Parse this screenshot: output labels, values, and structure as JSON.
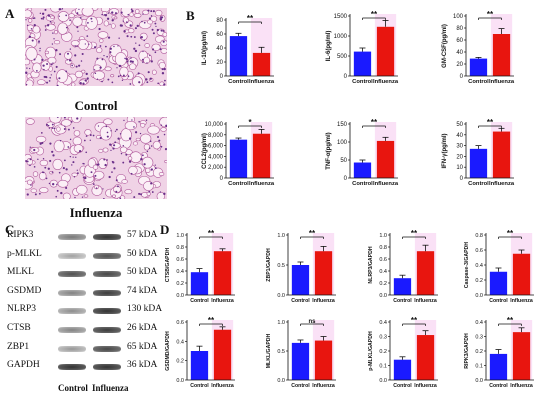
{
  "panels": {
    "a": "A",
    "b": "B",
    "c": "C",
    "d": "D"
  },
  "histology": {
    "top_caption": "Control",
    "bottom_caption": "Influenza"
  },
  "blot": {
    "lanes": [
      "Control",
      "Influenza"
    ],
    "rows": [
      {
        "protein": "RIPK3",
        "mw": "57 kDA"
      },
      {
        "protein": "p-MLKL",
        "mw": "50 kDA"
      },
      {
        "protein": "MLKL",
        "mw": "50 kDA"
      },
      {
        "protein": "GSDMD",
        "mw": "74 kDA"
      },
      {
        "protein": "NLRP3",
        "mw": "130 kDA"
      },
      {
        "protein": "CTSB",
        "mw": "26 kDA"
      },
      {
        "protein": "ZBP1",
        "mw": "65 kDA"
      },
      {
        "protein": "GAPDH",
        "mw": "36 kDA"
      }
    ]
  },
  "colors": {
    "control": "#1a1aff",
    "influenza": "#e8150f",
    "highlight": "#f6c9ee"
  },
  "chart_data": [
    {
      "type": "bar",
      "panel": "B",
      "ylabel": "IL-10(pg/ml)",
      "categories": [
        "Control",
        "Influenza"
      ],
      "values": [
        57,
        33
      ],
      "errors": [
        4,
        8
      ],
      "ylim": [
        0,
        80
      ],
      "yticks": [
        "0",
        "20",
        "40",
        "60",
        "80"
      ],
      "sig": "**"
    },
    {
      "type": "bar",
      "panel": "B",
      "ylabel": "IL-6(pg/ml)",
      "categories": [
        "Control",
        "Influenza"
      ],
      "values": [
        610,
        1230
      ],
      "errors": [
        90,
        160
      ],
      "ylim": [
        0,
        1500
      ],
      "yticks": [
        "0",
        "500",
        "1000",
        "1500"
      ],
      "sig": "**"
    },
    {
      "type": "bar",
      "panel": "B",
      "ylabel": "GM-CSF(pg/ml)",
      "categories": [
        "Control",
        "Influenza"
      ],
      "values": [
        29,
        70
      ],
      "errors": [
        2,
        9
      ],
      "ylim": [
        0,
        100
      ],
      "yticks": [
        "0",
        "20",
        "40",
        "60",
        "80",
        "100"
      ],
      "sig": "**"
    },
    {
      "type": "bar",
      "panel": "B",
      "ylabel": "CCL2(pg/ml)",
      "categories": [
        "Control",
        "Influenza"
      ],
      "values": [
        7100,
        8200
      ],
      "errors": [
        300,
        800
      ],
      "ylim": [
        0,
        10000
      ],
      "yticks": [
        "0",
        "2,000",
        "4,000",
        "6,000",
        "8,000",
        "10,000"
      ],
      "sig": "*"
    },
    {
      "type": "bar",
      "panel": "B",
      "ylabel": "TNF-α(pg/ml)",
      "categories": [
        "Control",
        "Influenza"
      ],
      "values": [
        43,
        103
      ],
      "errors": [
        7,
        10
      ],
      "ylim": [
        0,
        150
      ],
      "yticks": [
        "0",
        "50",
        "100",
        "150"
      ],
      "sig": "**"
    },
    {
      "type": "bar",
      "panel": "B",
      "ylabel": "IFN-γ(pg/ml)",
      "categories": [
        "Control",
        "Influenza"
      ],
      "values": [
        27,
        43
      ],
      "errors": [
        3,
        3
      ],
      "ylim": [
        0,
        50
      ],
      "yticks": [
        "0",
        "10",
        "20",
        "30",
        "40",
        "50"
      ],
      "sig": "**"
    },
    {
      "type": "bar",
      "panel": "D",
      "ylabel": "CTSB/GAPDH",
      "categories": [
        "Control",
        "Influenza"
      ],
      "values": [
        0.38,
        0.73
      ],
      "errors": [
        0.06,
        0.04
      ],
      "ylim": [
        0,
        1.0
      ],
      "yticks": [
        "0.0",
        "0.2",
        "0.4",
        "0.6",
        "0.8",
        "1.0"
      ],
      "sig": "**"
    },
    {
      "type": "bar",
      "panel": "D",
      "ylabel": "ZBP1/GAPDH",
      "categories": [
        "Control",
        "Influenza"
      ],
      "values": [
        0.5,
        0.73
      ],
      "errors": [
        0.05,
        0.08
      ],
      "ylim": [
        0,
        1.0
      ],
      "yticks": [
        "0.0",
        "0.5",
        "1.0"
      ],
      "sig": "**"
    },
    {
      "type": "bar",
      "panel": "D",
      "ylabel": "NLRP3/GAPDH",
      "categories": [
        "Control",
        "Influenza"
      ],
      "values": [
        0.28,
        0.73
      ],
      "errors": [
        0.05,
        0.1
      ],
      "ylim": [
        0,
        1.0
      ],
      "yticks": [
        "0.0",
        "0.2",
        "0.4",
        "0.6",
        "0.8",
        "1.0"
      ],
      "sig": "**"
    },
    {
      "type": "bar",
      "panel": "D",
      "ylabel": "Caspase-3/GAPDH",
      "categories": [
        "Control",
        "Influenza"
      ],
      "values": [
        0.31,
        0.55
      ],
      "errors": [
        0.05,
        0.05
      ],
      "ylim": [
        0,
        0.8
      ],
      "yticks": [
        "0.0",
        "0.2",
        "0.4",
        "0.6",
        "0.8"
      ],
      "sig": "**"
    },
    {
      "type": "bar",
      "panel": "D",
      "ylabel": "GSDMD/GAPDH",
      "categories": [
        "Control",
        "Influenza"
      ],
      "values": [
        0.3,
        0.52
      ],
      "errors": [
        0.05,
        0.03
      ],
      "ylim": [
        0,
        0.6
      ],
      "yticks": [
        "0.0",
        "0.2",
        "0.4",
        "0.6"
      ],
      "sig": "**"
    },
    {
      "type": "bar",
      "panel": "D",
      "ylabel": "MLKL/GAPDH",
      "categories": [
        "Control",
        "Influenza"
      ],
      "values": [
        0.64,
        0.68
      ],
      "errors": [
        0.05,
        0.07
      ],
      "ylim": [
        0,
        1.0
      ],
      "yticks": [
        "0.0",
        "0.5",
        "1.0"
      ],
      "sig": "ns"
    },
    {
      "type": "bar",
      "panel": "D",
      "ylabel": "p-MLKL/GAPDH",
      "categories": [
        "Control",
        "Influenza"
      ],
      "values": [
        0.14,
        0.31
      ],
      "errors": [
        0.02,
        0.03
      ],
      "ylim": [
        0,
        0.4
      ],
      "yticks": [
        "0.0",
        "0.1",
        "0.2",
        "0.3",
        "0.4"
      ],
      "sig": "**"
    },
    {
      "type": "bar",
      "panel": "D",
      "ylabel": "RIPK3/GAPDH",
      "categories": [
        "Control",
        "Influenza"
      ],
      "values": [
        0.18,
        0.33
      ],
      "errors": [
        0.03,
        0.03
      ],
      "ylim": [
        0,
        0.4
      ],
      "yticks": [
        "0.0",
        "0.1",
        "0.2",
        "0.3",
        "0.4"
      ],
      "sig": "**"
    }
  ]
}
